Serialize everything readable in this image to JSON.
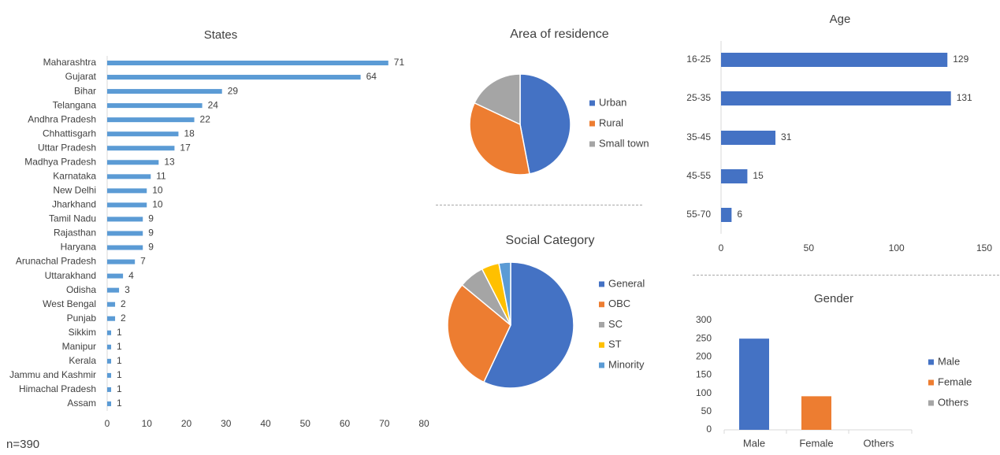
{
  "note": "n=390",
  "colors": {
    "bar_blue": "#5b9bd5",
    "dark_blue": "#4472c4",
    "orange": "#ed7d31",
    "gray": "#a5a5a5",
    "gold": "#ffc000",
    "light_blue": "#5b9bd5",
    "axis": "#d9d9d9",
    "text": "#404040"
  },
  "chart_data": [
    {
      "id": "states",
      "type": "bar",
      "orientation": "horizontal",
      "title": "States",
      "categories": [
        "Maharashtra",
        "Gujarat",
        "Bihar",
        "Telangana",
        "Andhra Pradesh",
        "Chhattisgarh",
        "Uttar Pradesh",
        "Madhya Pradesh",
        "Karnataka",
        "New Delhi",
        "Jharkhand",
        "Tamil Nadu",
        "Rajasthan",
        "Haryana",
        "Arunachal Pradesh",
        "Uttarakhand",
        "Odisha",
        "West Bengal",
        "Punjab",
        "Sikkim",
        "Manipur",
        "Kerala",
        "Jammu and Kashmir",
        "Himachal Pradesh",
        "Assam"
      ],
      "values": [
        71,
        64,
        29,
        24,
        22,
        18,
        17,
        13,
        11,
        10,
        10,
        9,
        9,
        9,
        7,
        4,
        3,
        2,
        2,
        1,
        1,
        1,
        1,
        1,
        1
      ],
      "xlim": [
        0,
        80
      ],
      "xticks": [
        "0",
        "10",
        "20",
        "30",
        "40",
        "50",
        "60",
        "70",
        "80"
      ],
      "data_labels": true,
      "grid": false
    },
    {
      "id": "residence",
      "type": "pie",
      "title": "Area of residence",
      "labels": [
        "Urban",
        "Rural",
        "Small town"
      ],
      "values": [
        47,
        35,
        18
      ],
      "legend": "right"
    },
    {
      "id": "social",
      "type": "pie",
      "title": "Social Category",
      "labels": [
        "General",
        "OBC",
        "SC",
        "ST",
        "Minority"
      ],
      "values": [
        57,
        29,
        6.5,
        4.5,
        3
      ],
      "legend": "right"
    },
    {
      "id": "age",
      "type": "bar",
      "orientation": "horizontal",
      "title": "Age",
      "categories": [
        "16-25",
        "25-35",
        "35-45",
        "45-55",
        "55-70"
      ],
      "values": [
        129,
        131,
        31,
        15,
        6
      ],
      "xlim": [
        0,
        150
      ],
      "xticks": [
        "0",
        "50",
        "100",
        "150"
      ],
      "data_labels": true,
      "grid": false
    },
    {
      "id": "gender",
      "type": "bar",
      "orientation": "vertical",
      "title": "Gender",
      "categories": [
        "Male",
        "Female",
        "Others"
      ],
      "values": [
        250,
        92,
        0
      ],
      "ylim": [
        0,
        300
      ],
      "yticks": [
        "0",
        "50",
        "100",
        "150",
        "200",
        "250",
        "300"
      ],
      "legend_labels": [
        "Male",
        "Female",
        "Others"
      ],
      "legend": "right",
      "grid": false
    }
  ]
}
